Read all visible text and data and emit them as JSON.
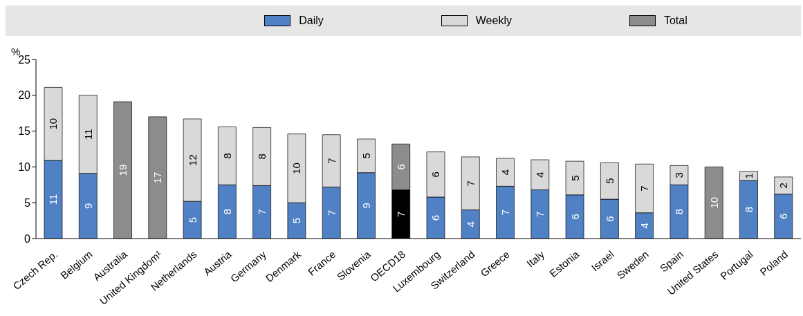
{
  "chart_data": {
    "type": "bar",
    "stacked": true,
    "ylabel": "%",
    "legend": "top",
    "categories": [
      "Czech Rep.",
      "Belgium",
      "Australia",
      "United Kingdom¹",
      "Netherlands",
      "Austria",
      "Germany",
      "Denmark",
      "France",
      "Slovenia",
      "OECD18",
      "Luxembourg",
      "Switzerland",
      "Greece",
      "Italy",
      "Estonia",
      "Israel",
      "Sweden",
      "Spain",
      "United States",
      "Portugal",
      "Poland"
    ],
    "ylim": [
      0,
      25
    ],
    "yticks": [
      0,
      5,
      10,
      15,
      20,
      25
    ],
    "series": [
      {
        "name": "Daily",
        "color": "#4f81c4",
        "colors": [
          "#4f81c4",
          "#4f81c4",
          "#4f81c4",
          "#4f81c4",
          "#4f81c4",
          "#4f81c4",
          "#4f81c4",
          "#4f81c4",
          "#4f81c4",
          "#4f81c4",
          "#000000",
          "#4f81c4",
          "#4f81c4",
          "#4f81c4",
          "#4f81c4",
          "#4f81c4",
          "#4f81c4",
          "#4f81c4",
          "#4f81c4",
          "#4f81c4",
          "#4f81c4",
          "#4f81c4"
        ],
        "values": [
          10.9,
          9.1,
          null,
          null,
          5.2,
          7.5,
          7.4,
          5.0,
          7.2,
          9.2,
          6.8,
          5.8,
          4.0,
          7.3,
          6.8,
          6.1,
          5.5,
          3.6,
          7.5,
          null,
          8.1,
          6.2
        ],
        "value_labels": [
          "11",
          "9",
          null,
          null,
          "5",
          "8",
          "7",
          "5",
          "7",
          "9",
          "7",
          "6",
          "4",
          "7",
          "7",
          "6",
          "6",
          "4",
          "8",
          null,
          "8",
          "6"
        ]
      },
      {
        "name": "Weekly",
        "color": "#d9d9d9",
        "colors": [
          "#d9d9d9",
          "#d9d9d9",
          "#d9d9d9",
          "#d9d9d9",
          "#d9d9d9",
          "#d9d9d9",
          "#d9d9d9",
          "#d9d9d9",
          "#d9d9d9",
          "#d9d9d9",
          "#8c8c8c",
          "#d9d9d9",
          "#d9d9d9",
          "#d9d9d9",
          "#d9d9d9",
          "#d9d9d9",
          "#d9d9d9",
          "#d9d9d9",
          "#d9d9d9",
          "#d9d9d9",
          "#d9d9d9",
          "#d9d9d9"
        ],
        "values": [
          10.2,
          10.9,
          null,
          null,
          11.5,
          8.1,
          8.1,
          9.6,
          7.3,
          4.7,
          6.4,
          6.3,
          7.4,
          3.9,
          4.2,
          4.7,
          5.1,
          6.8,
          2.7,
          null,
          1.3,
          2.4
        ],
        "value_labels": [
          "10",
          "11",
          null,
          null,
          "12",
          "8",
          "8",
          "10",
          "7",
          "5",
          "6",
          "6",
          "7",
          "4",
          "4",
          "5",
          "5",
          "7",
          "3",
          null,
          "1",
          "2"
        ]
      },
      {
        "name": "Total",
        "color": "#8c8c8c",
        "values": [
          null,
          null,
          19.1,
          17.0,
          null,
          null,
          null,
          null,
          null,
          null,
          null,
          null,
          null,
          null,
          null,
          null,
          null,
          null,
          null,
          10.0,
          null,
          null
        ],
        "value_labels": [
          null,
          null,
          "19",
          "17",
          null,
          null,
          null,
          null,
          null,
          null,
          null,
          null,
          null,
          null,
          null,
          null,
          null,
          null,
          null,
          "10",
          null,
          null
        ]
      }
    ]
  }
}
